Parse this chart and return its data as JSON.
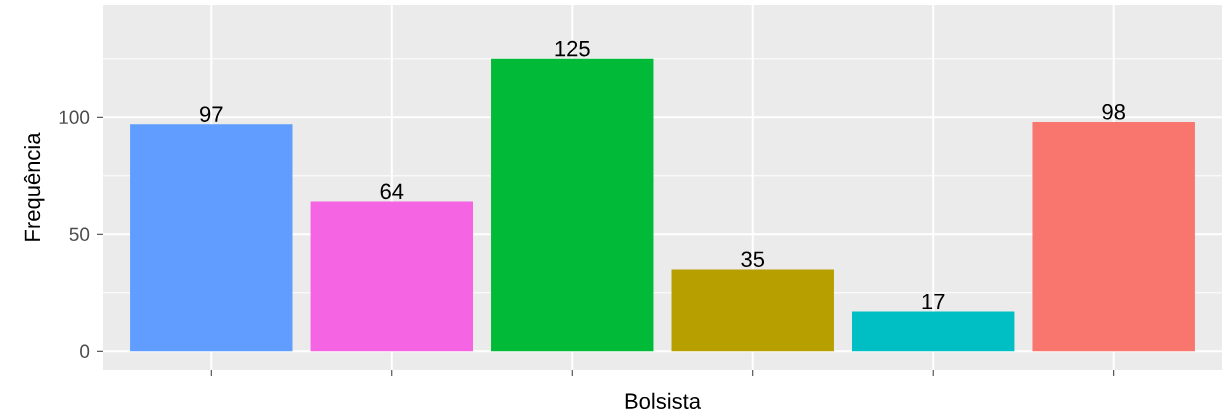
{
  "chart_data": {
    "type": "bar",
    "xlabel": "Bolsista",
    "ylabel": "Frequência",
    "categories": [
      null,
      null,
      null,
      null,
      null,
      null
    ],
    "values": [
      97,
      64,
      125,
      35,
      17,
      98
    ],
    "colors": [
      "#619cff",
      "#f564e3",
      "#00ba38",
      "#b79f00",
      "#00bfc4",
      "#f8766d"
    ],
    "ylim": [
      -8,
      148
    ],
    "yticks": [
      0,
      50,
      100
    ],
    "grid": true,
    "data_labels": true,
    "tick_labels": "y"
  }
}
